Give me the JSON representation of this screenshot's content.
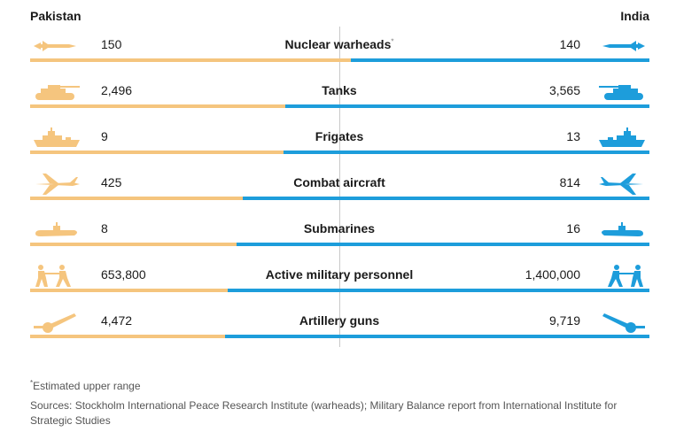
{
  "countries": {
    "left": "Pakistan",
    "right": "India"
  },
  "colors": {
    "pakistan": "#f5c57e",
    "india": "#1d9ddb"
  },
  "chart_data": {
    "type": "bar",
    "layout": "diverging-horizontal",
    "title": "",
    "series_names": [
      "Pakistan",
      "India"
    ],
    "rows": [
      {
        "label": "Nuclear warheads",
        "note_marker": "*",
        "pakistan": 150,
        "india": 140,
        "pakistan_text": "150",
        "india_text": "140",
        "icon": "missile-icon"
      },
      {
        "label": "Tanks",
        "pakistan": 2496,
        "india": 3565,
        "pakistan_text": "2,496",
        "india_text": "3,565",
        "icon": "tank-icon"
      },
      {
        "label": "Frigates",
        "pakistan": 9,
        "india": 13,
        "pakistan_text": "9",
        "india_text": "13",
        "icon": "frigate-icon"
      },
      {
        "label": "Combat aircraft",
        "pakistan": 425,
        "india": 814,
        "pakistan_text": "425",
        "india_text": "814",
        "icon": "jet-icon"
      },
      {
        "label": "Submarines",
        "pakistan": 8,
        "india": 16,
        "pakistan_text": "8",
        "india_text": "16",
        "icon": "submarine-icon"
      },
      {
        "label": "Active military personnel",
        "pakistan": 653800,
        "india": 1400000,
        "pakistan_text": "653,800",
        "india_text": "1,400,000",
        "icon": "soldiers-icon"
      },
      {
        "label": "Artillery guns",
        "pakistan": 4472,
        "india": 9719,
        "pakistan_text": "4,472",
        "india_text": "9,719",
        "icon": "artillery-icon"
      }
    ]
  },
  "footnotes": {
    "marker": "*",
    "estimate": "Estimated upper range",
    "sources": "Sources: Stockholm International Peace Research Institute (warheads); Military Balance report from International Institute for Strategic Studies"
  }
}
